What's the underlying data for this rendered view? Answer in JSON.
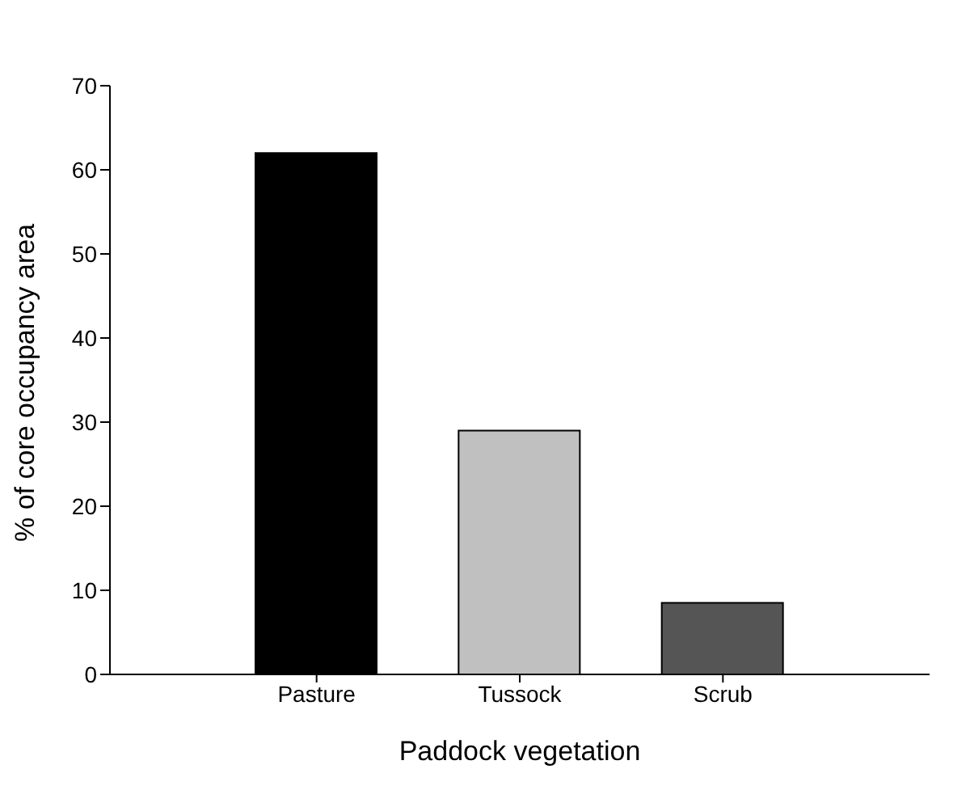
{
  "chart_data": {
    "type": "bar",
    "xlabel": "Paddock vegetation",
    "ylabel": "% of core occupancy area",
    "categories": [
      "Pasture",
      "Tussock",
      "Scrub"
    ],
    "values": [
      62,
      29,
      8.5
    ],
    "colors": [
      "#000000",
      "#c0c0c0",
      "#555555"
    ],
    "ylim": [
      0,
      70
    ],
    "yticks": [
      0,
      10,
      20,
      30,
      40,
      50,
      60,
      70
    ],
    "grid": false,
    "legend": false
  }
}
